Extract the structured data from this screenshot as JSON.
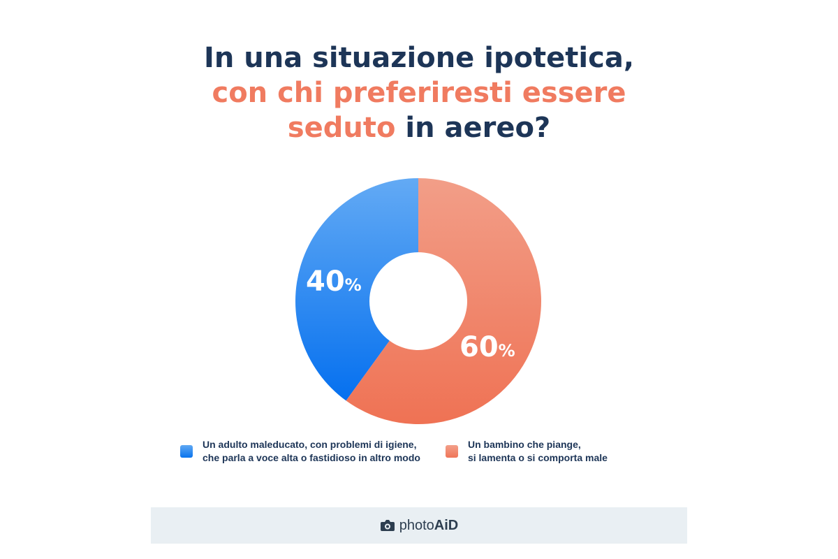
{
  "header": {
    "line1": "In una situazione ipotetica,",
    "line2": "con chi preferiresti essere",
    "line3_highlight": "seduto",
    "line3_rest": " in aereo?"
  },
  "chart_data": {
    "type": "pie",
    "donut": true,
    "categories": [
      "Un adulto maleducato, con problemi di igiene, che parla a voce alta o fastidioso in altro modo",
      "Un bambino che piange, si lamenta o si comporta male"
    ],
    "values": [
      40,
      60
    ],
    "data_labels": [
      {
        "number": "40",
        "unit": "%"
      },
      {
        "number": "60",
        "unit": "%"
      }
    ],
    "colors": [
      "#2f8cf0",
      "#f07b60"
    ],
    "legend_position": "bottom"
  },
  "legend": {
    "items": [
      {
        "text": "Un adulto maleducato, con problemi di igiene,\nche parla a voce alta o fastidioso in altro modo",
        "color": "#2f8cf0"
      },
      {
        "text": "Un bambino che piange,\nsi lamenta o si comporta male",
        "color": "#f07b60"
      }
    ]
  },
  "footer": {
    "brand_regular": "photo",
    "brand_bold": "AiD",
    "icon": "camera-icon"
  }
}
